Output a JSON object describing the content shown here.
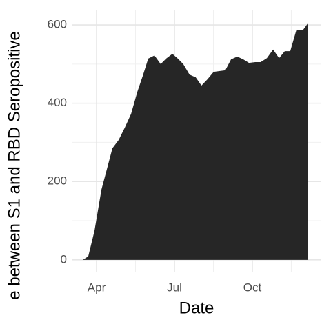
{
  "chart_data": {
    "type": "area",
    "x_label": "Date",
    "y_label": "e between S1 and RBD Seropositive",
    "x": [
      3.47,
      3.68,
      3.92,
      4.19,
      4.4,
      4.61,
      4.85,
      5.09,
      5.33,
      5.57,
      5.78,
      5.99,
      6.23,
      6.47,
      6.68,
      6.92,
      7.13,
      7.34,
      7.58,
      7.82,
      8.04,
      8.27,
      8.51,
      8.73,
      8.96,
      9.18,
      9.42,
      9.65,
      9.87,
      10.11,
      10.32,
      10.56,
      10.8,
      11.03,
      11.25,
      11.46,
      11.7,
      11.94,
      12.15
    ],
    "y": [
      0,
      9,
      74,
      180,
      232,
      285,
      306,
      338,
      373,
      429,
      470,
      514,
      522,
      500,
      514,
      526,
      514,
      500,
      473,
      466,
      445,
      461,
      480,
      482,
      484,
      512,
      519,
      512,
      503,
      505,
      505,
      515,
      537,
      515,
      533,
      533,
      588,
      586,
      605
    ],
    "color": "#262626",
    "xlim": [
      3.07,
      12.63
    ],
    "ylim": [
      -32,
      637
    ],
    "xticks": [
      {
        "value": 4,
        "label": "Apr"
      },
      {
        "value": 7,
        "label": "Jul"
      },
      {
        "value": 10,
        "label": "Oct"
      }
    ],
    "yticks": [
      0,
      200,
      400,
      600
    ],
    "xminor": [
      5.5,
      8.5,
      11.5
    ],
    "yminor": [
      100,
      300,
      500
    ],
    "grid": true
  }
}
